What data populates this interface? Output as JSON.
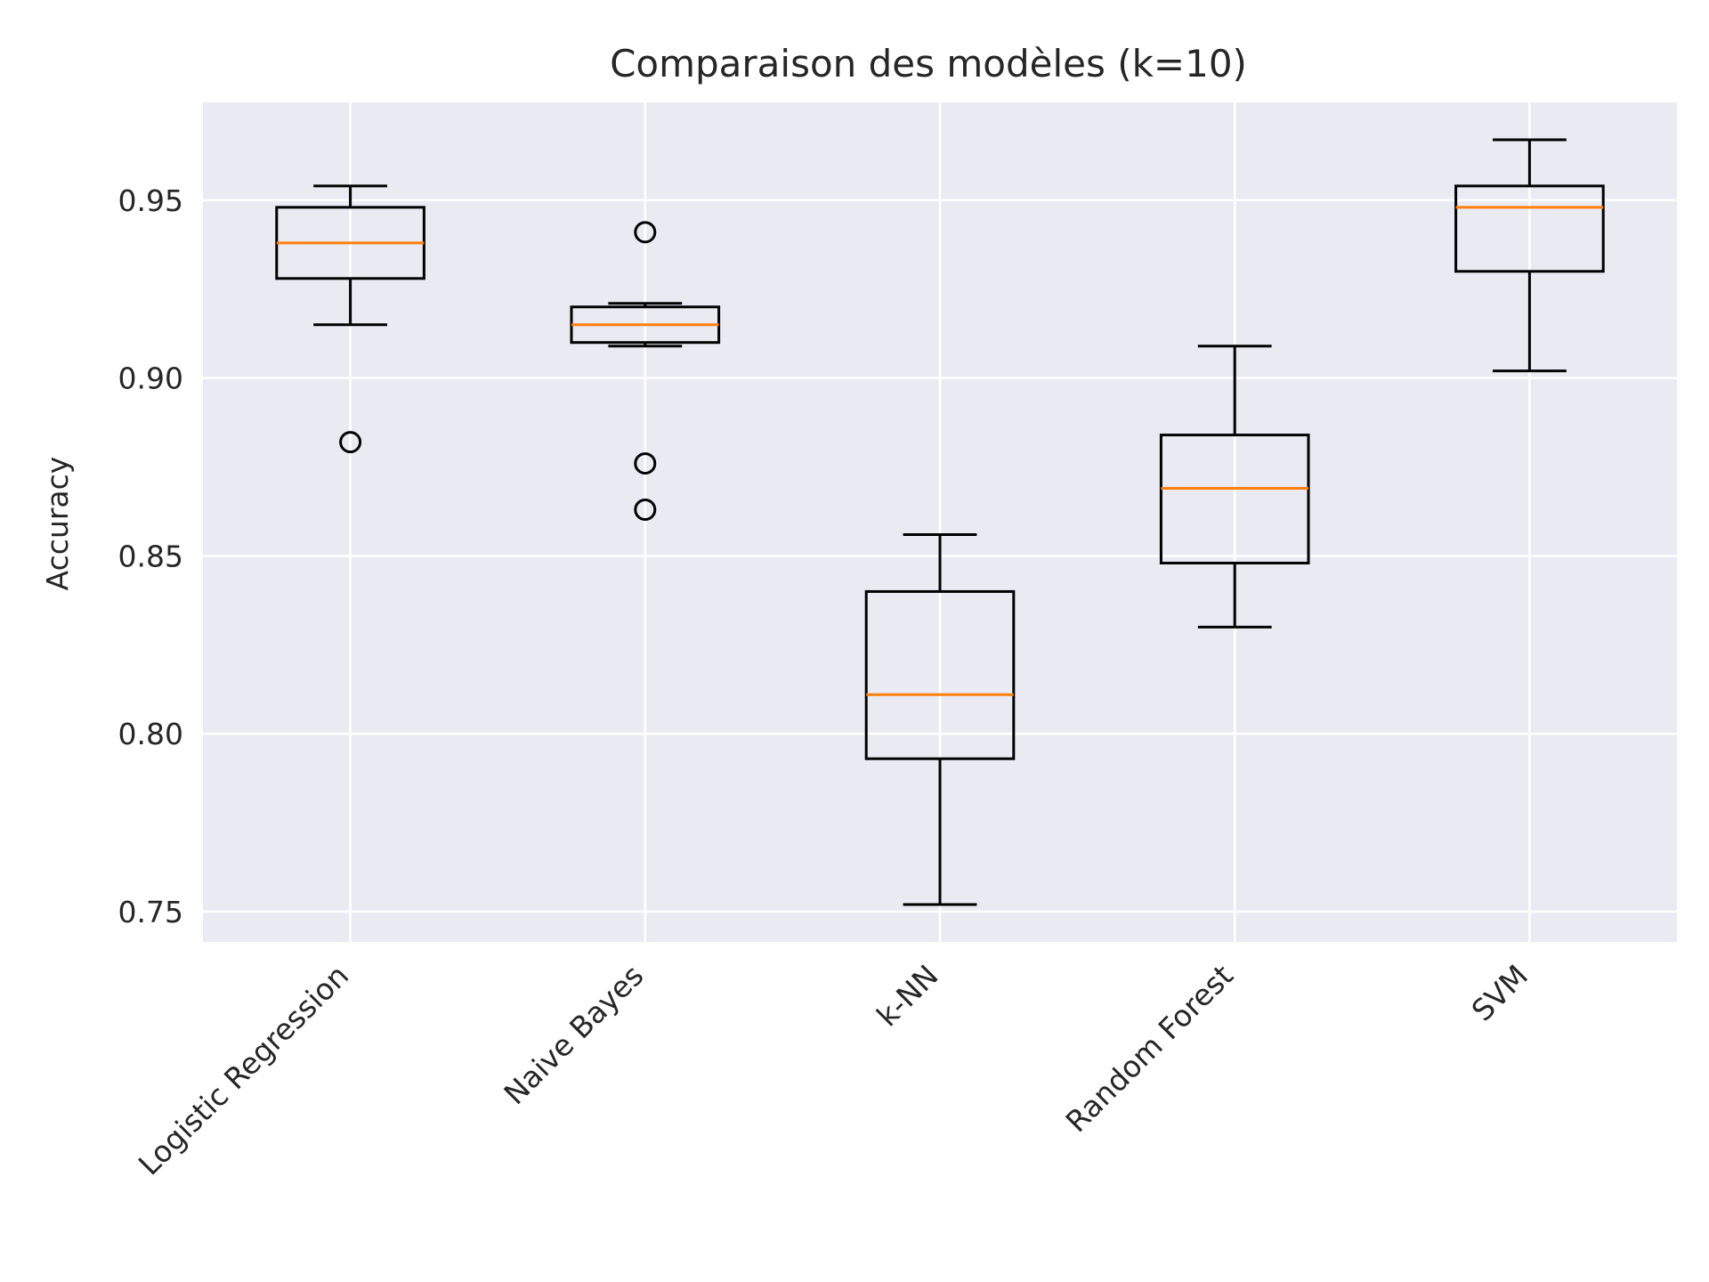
{
  "chart_data": {
    "type": "boxplot",
    "title": "Comparaison des modèles (k=10)",
    "xlabel": "",
    "ylabel": "Accuracy",
    "ylim": [
      0.7415,
      0.9775
    ],
    "yticks": [
      "0.75",
      "0.80",
      "0.85",
      "0.90",
      "0.95"
    ],
    "categories": [
      "Logistic Regression",
      "Naive Bayes",
      "k-NN",
      "Random Forest",
      "SVM"
    ],
    "boxes": [
      {
        "whisker_low": 0.915,
        "q1": 0.928,
        "median": 0.938,
        "q3": 0.948,
        "whisker_high": 0.954,
        "outliers": [
          0.882
        ]
      },
      {
        "whisker_low": 0.909,
        "q1": 0.91,
        "median": 0.915,
        "q3": 0.92,
        "whisker_high": 0.921,
        "outliers": [
          0.941,
          0.876,
          0.863
        ]
      },
      {
        "whisker_low": 0.752,
        "q1": 0.793,
        "median": 0.811,
        "q3": 0.84,
        "whisker_high": 0.856,
        "outliers": []
      },
      {
        "whisker_low": 0.83,
        "q1": 0.848,
        "median": 0.869,
        "q3": 0.884,
        "whisker_high": 0.909,
        "outliers": []
      },
      {
        "whisker_low": 0.902,
        "q1": 0.93,
        "median": 0.948,
        "q3": 0.954,
        "whisker_high": 0.967,
        "outliers": []
      }
    ],
    "grid": true,
    "colors": {
      "background": "#eaeaf2",
      "grid": "#ffffff",
      "box": "#000000",
      "median": "#ff7f0e",
      "text": "#262626"
    }
  }
}
